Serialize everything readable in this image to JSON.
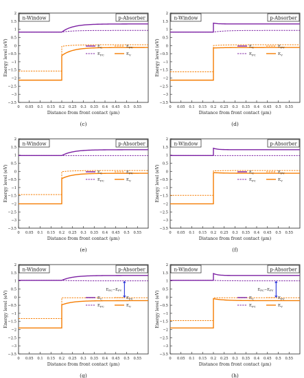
{
  "figure": {
    "common": {
      "xlabel": "Distance from front contact (µm)",
      "ylabel": "Energy level (eV)",
      "region_left": "n-Window",
      "region_right": "p-Absorber",
      "xlim": [
        0,
        0.6
      ],
      "ylim": [
        -3.5,
        2
      ],
      "x_ticks": [
        0,
        0.05,
        0.1,
        0.15,
        0.2,
        0.25,
        0.3,
        0.35,
        0.4,
        0.45,
        0.5,
        0.55
      ],
      "y_ticks": [
        2,
        1.5,
        1,
        0.5,
        0,
        -0.5,
        -1,
        -1.5,
        -2,
        -2.5,
        -3,
        -3.5
      ],
      "legend_labels": {
        "Ec": "E",
        "Efc": "E",
        "Efv": "E",
        "Ev": "E"
      },
      "legend_subs": {
        "Ec": "C",
        "Efc": "FC",
        "Efv": "FV",
        "Ev": "V"
      },
      "colors": {
        "conduction": "#7B1FA2",
        "valence": "#F57C00",
        "arrow": "#1E2BD6"
      }
    },
    "panels": [
      {
        "label": "(c)"
      },
      {
        "label": "(d)"
      },
      {
        "label": "(e)"
      },
      {
        "label": "(f)"
      },
      {
        "label": "(g)"
      },
      {
        "label": "(h)"
      }
    ]
  },
  "chart_data": [
    {
      "panel": "(c)",
      "type": "line",
      "junction": 0.2,
      "spike": false,
      "series": [
        {
          "name": "Ec",
          "style": "solid",
          "left": 0.83,
          "end": 1.33
        },
        {
          "name": "Efc",
          "style": "dashed",
          "left": 0.83,
          "end": 0.93
        },
        {
          "name": "Efv",
          "style": "dashed",
          "left": -1.57,
          "right_start": -0.05,
          "end": 0.05
        },
        {
          "name": "Ev",
          "style": "solid",
          "left": -2.13,
          "right_start": -0.62,
          "end": -0.12
        }
      ]
    },
    {
      "panel": "(d)",
      "type": "line",
      "junction": 0.2,
      "spike": true,
      "series": [
        {
          "name": "Ec",
          "style": "solid",
          "left": 0.83,
          "spike_top": 1.38,
          "end": 1.33
        },
        {
          "name": "Efc",
          "style": "dashed",
          "left": 0.83,
          "end": 0.93
        },
        {
          "name": "Efv",
          "style": "dashed",
          "left": -1.62,
          "right_start": 0.0,
          "end": 0.05
        },
        {
          "name": "Ev",
          "style": "solid",
          "left": -2.13,
          "right_start": -0.15,
          "end": -0.12
        }
      ]
    },
    {
      "panel": "(e)",
      "type": "line",
      "junction": 0.2,
      "spike": false,
      "series": [
        {
          "name": "Ec",
          "style": "solid",
          "left": 0.97,
          "end": 1.33
        },
        {
          "name": "Efc",
          "style": "dashed",
          "left": 0.97,
          "end": 0.97
        },
        {
          "name": "Efv",
          "style": "dashed",
          "left": -1.43,
          "right_start": -0.02,
          "end": 0.05
        },
        {
          "name": "Ev",
          "style": "solid",
          "left": -2.0,
          "right_start": -0.45,
          "end": -0.12
        }
      ]
    },
    {
      "panel": "(f)",
      "type": "line",
      "junction": 0.2,
      "spike": true,
      "series": [
        {
          "name": "Ec",
          "style": "solid",
          "left": 0.97,
          "spike_top": 1.42,
          "end": 1.33
        },
        {
          "name": "Efc",
          "style": "dashed",
          "left": 0.97,
          "end": 0.97
        },
        {
          "name": "Efv",
          "style": "dashed",
          "left": -1.48,
          "right_start": 0.03,
          "end": 0.05
        },
        {
          "name": "Ev",
          "style": "solid",
          "left": -2.0,
          "right_start": -0.08,
          "end": -0.12
        }
      ]
    },
    {
      "panel": "(g)",
      "type": "line",
      "junction": 0.2,
      "spike": false,
      "arrow": {
        "x": 0.49,
        "from": 1.0,
        "to": -0.04,
        "label": "E",
        "sub": "FC",
        "label2": "−E",
        "sub2": "FV"
      },
      "series": [
        {
          "name": "Ec",
          "style": "solid",
          "left": 1.03,
          "end": 1.33
        },
        {
          "name": "Efc",
          "style": "dashed",
          "left": 1.03,
          "end": 1.0
        },
        {
          "name": "Efv",
          "style": "dashed",
          "left": -1.32,
          "right_start": -0.04,
          "end": -0.04
        },
        {
          "name": "Ev",
          "style": "solid",
          "left": -1.9,
          "right_start": -0.48,
          "end": -0.22
        }
      ]
    },
    {
      "panel": "(h)",
      "type": "line",
      "junction": 0.2,
      "spike": true,
      "arrow": {
        "x": 0.49,
        "from": 1.0,
        "to": -0.04,
        "label": "E",
        "sub": "FC",
        "label2": "−E",
        "sub2": "FV"
      },
      "series": [
        {
          "name": "Ec",
          "style": "solid",
          "left": 1.03,
          "spike_top": 1.45,
          "end": 1.33
        },
        {
          "name": "Efc",
          "style": "dashed",
          "left": 1.03,
          "end": 1.0
        },
        {
          "name": "Efv",
          "style": "dashed",
          "left": -1.45,
          "right_start": -0.04,
          "end": -0.04
        },
        {
          "name": "Ev",
          "style": "solid",
          "left": -1.9,
          "right_start": -0.1,
          "end": -0.22
        }
      ]
    }
  ]
}
